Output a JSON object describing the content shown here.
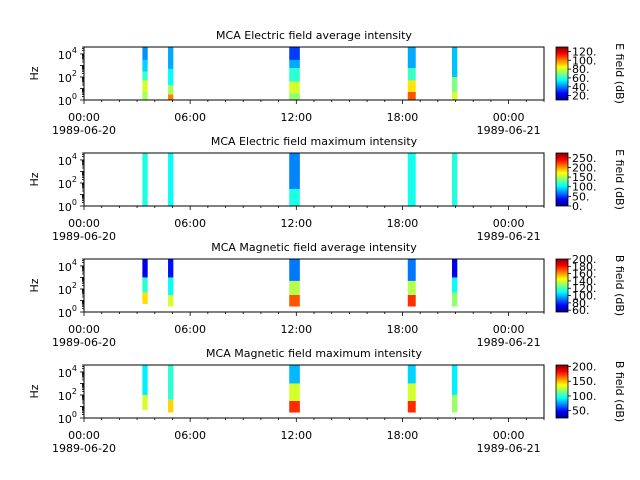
{
  "chart_data": [
    {
      "type": "heatmap",
      "title": "MCA  Electric field average intensity",
      "ylabel": "Hz",
      "yscale": "log",
      "ylim": [
        1,
        40000
      ],
      "yticks": [
        {
          "label": "10",
          "exp": "0",
          "value": 1
        },
        {
          "label": "10",
          "exp": "2",
          "value": 100
        },
        {
          "label": "10",
          "exp": "4",
          "value": 10000
        }
      ],
      "xlim_hours": [
        0,
        26
      ],
      "xticks": [
        {
          "hour": 0,
          "label": "00:00"
        },
        {
          "hour": 6,
          "label": "06:00"
        },
        {
          "hour": 12,
          "label": "12:00"
        },
        {
          "hour": 18,
          "label": "18:00"
        },
        {
          "hour": 24,
          "label": "00:00"
        }
      ],
      "date_labels": [
        {
          "hour": 0,
          "label": "1989-06-20"
        },
        {
          "hour": 24,
          "label": "1989-06-21"
        }
      ],
      "colorbar": {
        "label": "E field (dB)",
        "min": 10,
        "max": 130,
        "ticks": [
          "20.",
          "40.",
          "60.",
          "80.",
          "100.",
          "120."
        ],
        "tick_values": [
          20,
          40,
          60,
          80,
          100,
          120
        ]
      },
      "passes": [
        {
          "start": 3.3,
          "end": 3.6,
          "bands": [
            [
              1,
              5,
              75
            ],
            [
              5,
              50,
              80
            ],
            [
              50,
              300,
              62
            ],
            [
              300,
              3000,
              50
            ],
            [
              3000,
              40000,
              42
            ]
          ]
        },
        {
          "start": 4.75,
          "end": 5.05,
          "bands": [
            [
              1,
              3,
              100
            ],
            [
              3,
              20,
              75
            ],
            [
              20,
              500,
              55
            ],
            [
              500,
              40000,
              45
            ]
          ]
        },
        {
          "start": 11.6,
          "end": 12.2,
          "bands": [
            [
              1,
              4,
              72
            ],
            [
              4,
              40,
              80
            ],
            [
              40,
              600,
              60
            ],
            [
              600,
              3000,
              45
            ],
            [
              3000,
              40000,
              32
            ]
          ]
        },
        {
          "start": 18.3,
          "end": 18.75,
          "bands": [
            [
              1,
              5,
              105
            ],
            [
              5,
              50,
              88
            ],
            [
              50,
              600,
              62
            ],
            [
              600,
              40000,
              45
            ]
          ]
        },
        {
          "start": 20.8,
          "end": 21.1,
          "bands": [
            [
              1,
              5,
              80
            ],
            [
              5,
              100,
              70
            ],
            [
              100,
              40000,
              48
            ]
          ]
        }
      ]
    },
    {
      "type": "heatmap",
      "title": "MCA  Electric field maximum intensity",
      "ylabel": "Hz",
      "yscale": "log",
      "ylim": [
        1,
        40000
      ],
      "yticks": [
        {
          "label": "10",
          "exp": "0",
          "value": 1
        },
        {
          "label": "10",
          "exp": "2",
          "value": 100
        },
        {
          "label": "10",
          "exp": "4",
          "value": 10000
        }
      ],
      "xlim_hours": [
        0,
        26
      ],
      "xticks": [
        {
          "hour": 0,
          "label": "00:00"
        },
        {
          "hour": 6,
          "label": "06:00"
        },
        {
          "hour": 12,
          "label": "12:00"
        },
        {
          "hour": 18,
          "label": "18:00"
        },
        {
          "hour": 24,
          "label": "00:00"
        }
      ],
      "date_labels": [
        {
          "hour": 0,
          "label": "1989-06-20"
        },
        {
          "hour": 24,
          "label": "1989-06-21"
        }
      ],
      "colorbar": {
        "label": "E field (dB)",
        "min": 0,
        "max": 275,
        "ticks": [
          "0.",
          "50.",
          "100.",
          "150.",
          "200.",
          "250."
        ],
        "tick_values": [
          0,
          50,
          100,
          150,
          200,
          250
        ]
      },
      "passes": [
        {
          "start": 3.3,
          "end": 3.6,
          "bands": [
            [
              1,
              40000,
              110
            ]
          ]
        },
        {
          "start": 4.75,
          "end": 5.05,
          "bands": [
            [
              1,
              40000,
              105
            ]
          ]
        },
        {
          "start": 11.6,
          "end": 12.2,
          "bands": [
            [
              1,
              30,
              110
            ],
            [
              30,
              40000,
              70
            ]
          ]
        },
        {
          "start": 18.3,
          "end": 18.75,
          "bands": [
            [
              1,
              40000,
              108
            ]
          ]
        },
        {
          "start": 20.8,
          "end": 21.1,
          "bands": [
            [
              1,
              40000,
              112
            ]
          ]
        }
      ]
    },
    {
      "type": "heatmap",
      "title": "MCA  Magnetic field average intensity",
      "ylabel": "Hz",
      "yscale": "log",
      "ylim": [
        1,
        40000
      ],
      "yticks": [
        {
          "label": "10",
          "exp": "0",
          "value": 1
        },
        {
          "label": "10",
          "exp": "2",
          "value": 100
        },
        {
          "label": "10",
          "exp": "4",
          "value": 10000
        }
      ],
      "xlim_hours": [
        0,
        26
      ],
      "xticks": [
        {
          "hour": 0,
          "label": "00:00"
        },
        {
          "hour": 6,
          "label": "06:00"
        },
        {
          "hour": 12,
          "label": "12:00"
        },
        {
          "hour": 18,
          "label": "18:00"
        },
        {
          "hour": 24,
          "label": "00:00"
        }
      ],
      "date_labels": [
        {
          "hour": 0,
          "label": "1989-06-20"
        },
        {
          "hour": 24,
          "label": "1989-06-21"
        }
      ],
      "colorbar": {
        "label": "B field (dB)",
        "min": 55,
        "max": 200,
        "ticks": [
          "60.",
          "80.",
          "100.",
          "120.",
          "140.",
          "160.",
          "180.",
          "200."
        ],
        "tick_values": [
          60,
          80,
          100,
          120,
          140,
          160,
          180,
          200
        ]
      },
      "passes": [
        {
          "start": 3.3,
          "end": 3.6,
          "bands": [
            [
              5,
              50,
              150
            ],
            [
              50,
              1000,
              115
            ],
            [
              1000,
              40000,
              70
            ]
          ]
        },
        {
          "start": 4.75,
          "end": 5.05,
          "bands": [
            [
              3,
              30,
              140
            ],
            [
              30,
              1000,
              110
            ],
            [
              1000,
              40000,
              75
            ]
          ]
        },
        {
          "start": 11.6,
          "end": 12.2,
          "bands": [
            [
              3,
              30,
              170
            ],
            [
              30,
              500,
              135
            ],
            [
              500,
              40000,
              90
            ]
          ]
        },
        {
          "start": 18.3,
          "end": 18.75,
          "bands": [
            [
              3,
              30,
              175
            ],
            [
              30,
              500,
              135
            ],
            [
              500,
              40000,
              90
            ]
          ]
        },
        {
          "start": 20.8,
          "end": 21.1,
          "bands": [
            [
              3,
              50,
              130
            ],
            [
              50,
              1000,
              110
            ],
            [
              1000,
              40000,
              70
            ]
          ]
        }
      ]
    },
    {
      "type": "heatmap",
      "title": "MCA  Magnetic field maximum intensity",
      "ylabel": "Hz",
      "yscale": "log",
      "ylim": [
        1,
        40000
      ],
      "yticks": [
        {
          "label": "10",
          "exp": "0",
          "value": 1
        },
        {
          "label": "10",
          "exp": "2",
          "value": 100
        },
        {
          "label": "10",
          "exp": "4",
          "value": 10000
        }
      ],
      "xlim_hours": [
        0,
        26
      ],
      "xticks": [
        {
          "hour": 0,
          "label": "00:00"
        },
        {
          "hour": 6,
          "label": "06:00"
        },
        {
          "hour": 12,
          "label": "12:00"
        },
        {
          "hour": 18,
          "label": "18:00"
        },
        {
          "hour": 24,
          "label": "00:00"
        }
      ],
      "date_labels": [
        {
          "hour": 0,
          "label": "1989-06-20"
        },
        {
          "hour": 24,
          "label": "1989-06-21"
        }
      ],
      "colorbar": {
        "label": "B field (dB)",
        "min": 25,
        "max": 205,
        "ticks": [
          "50.",
          "100.",
          "150.",
          "200."
        ],
        "tick_values": [
          50,
          100,
          150,
          200
        ]
      },
      "passes": [
        {
          "start": 3.3,
          "end": 3.6,
          "bands": [
            [
              5,
              100,
              130
            ],
            [
              100,
              40000,
              90
            ]
          ]
        },
        {
          "start": 4.75,
          "end": 5.05,
          "bands": [
            [
              3,
              40,
              145
            ],
            [
              40,
              40000,
              100
            ]
          ]
        },
        {
          "start": 11.6,
          "end": 12.2,
          "bands": [
            [
              3,
              30,
              175
            ],
            [
              30,
              1000,
              130
            ],
            [
              1000,
              40000,
              80
            ]
          ]
        },
        {
          "start": 18.3,
          "end": 18.75,
          "bands": [
            [
              3,
              30,
              175
            ],
            [
              30,
              1000,
              130
            ],
            [
              1000,
              40000,
              85
            ]
          ]
        },
        {
          "start": 20.8,
          "end": 21.1,
          "bands": [
            [
              3,
              100,
              120
            ],
            [
              100,
              40000,
              90
            ]
          ]
        }
      ]
    }
  ]
}
